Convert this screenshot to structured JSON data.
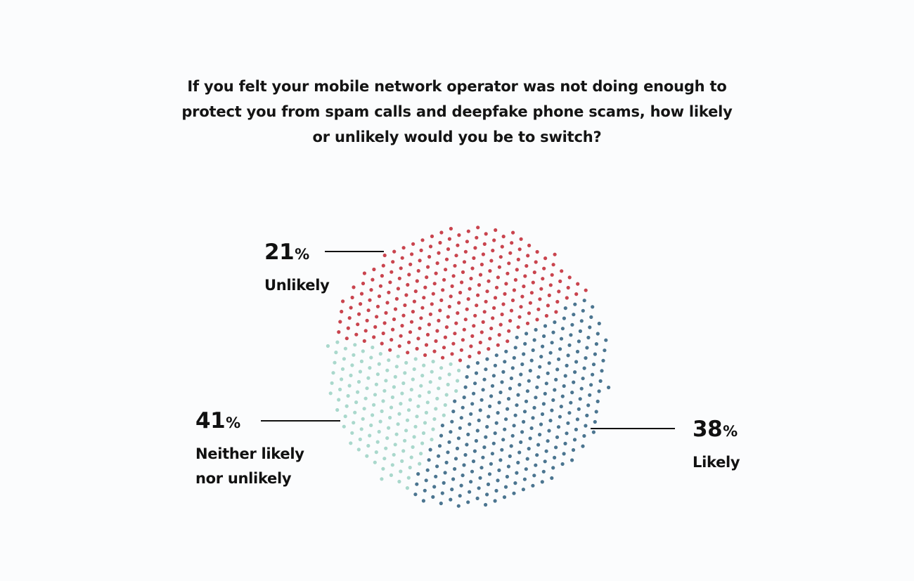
{
  "chart_data": {
    "type": "pie",
    "title": "If you felt your mobile network operator was not doing enough to protect you from spam calls and deepfake phone scams, how likely or unlikely would you be to switch?",
    "style": "dot-pattern pie",
    "slices": [
      {
        "label": "Likely",
        "value": 38,
        "value_label": "38",
        "unit": "%",
        "color": "#c9444e"
      },
      {
        "label": "Neither likely nor unlikely",
        "value": 41,
        "value_label": "41",
        "unit": "%",
        "color": "#4b7590"
      },
      {
        "label": "Unlikely",
        "value": 21,
        "value_label": "21",
        "unit": "%",
        "color": "#a9d8cc"
      }
    ],
    "grid": false,
    "legend": "none (callout labels)"
  }
}
